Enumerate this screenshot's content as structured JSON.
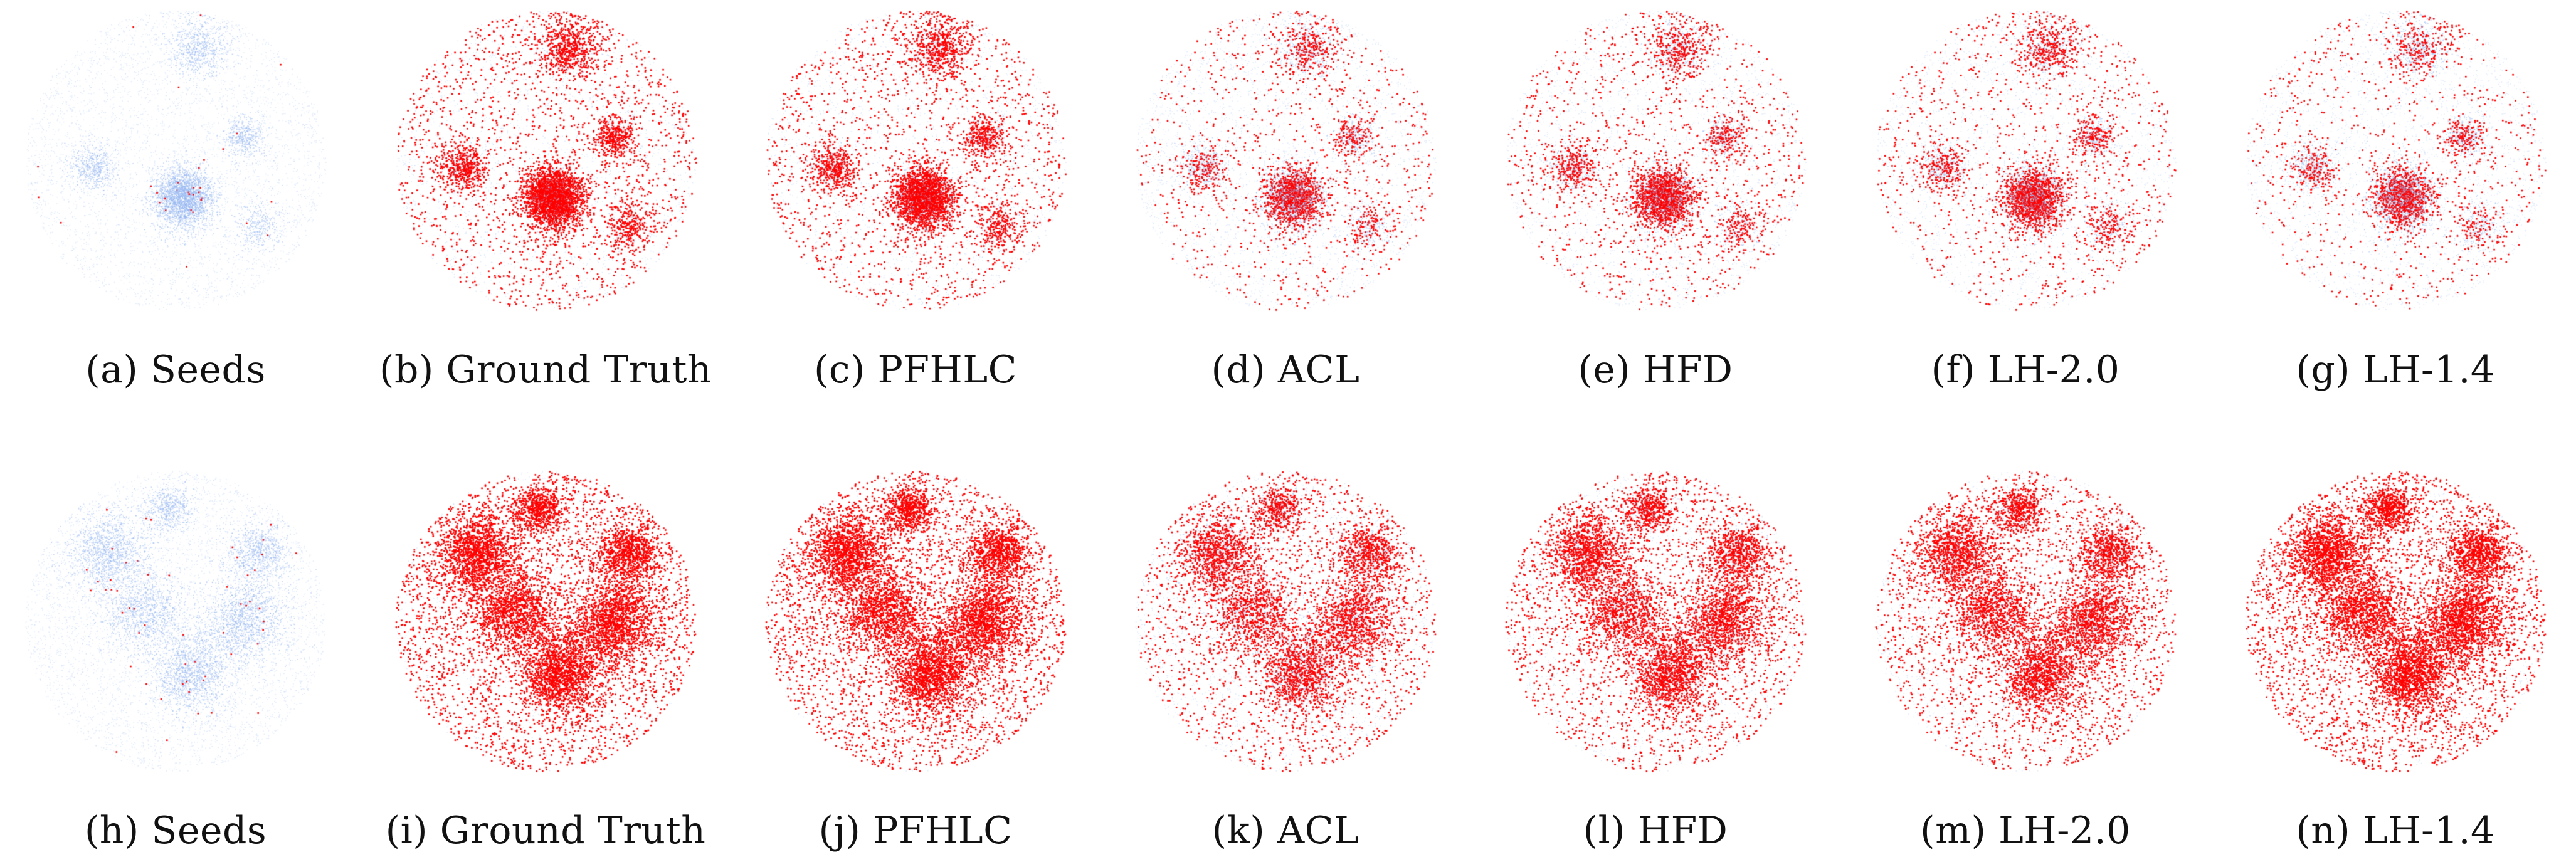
{
  "figure": {
    "colors": {
      "background_nodes": "#8fb3f0",
      "selected_nodes": "#ff0000"
    },
    "rows": [
      {
        "panels": [
          {
            "label": "(a)  Seeds",
            "fraction_selected": 0.003
          },
          {
            "label": "(b)  Ground Truth",
            "fraction_selected": 0.55
          },
          {
            "label": "(c)  PFHLC",
            "fraction_selected": 0.5
          },
          {
            "label": "(d)  ACL",
            "fraction_selected": 0.26
          },
          {
            "label": "(e)  HFD",
            "fraction_selected": 0.32
          },
          {
            "label": "(f)  LH-2.0",
            "fraction_selected": 0.3
          },
          {
            "label": "(g)  LH-1.4",
            "fraction_selected": 0.22
          }
        ]
      },
      {
        "panels": [
          {
            "label": "(h)  Seeds",
            "fraction_selected": 0.003
          },
          {
            "label": "(i)  Ground Truth",
            "fraction_selected": 0.8
          },
          {
            "label": "(j)  PFHLC",
            "fraction_selected": 0.8
          },
          {
            "label": "(k)  ACL",
            "fraction_selected": 0.45
          },
          {
            "label": "(l)  HFD",
            "fraction_selected": 0.55
          },
          {
            "label": "(m)  LH-2.0",
            "fraction_selected": 0.55
          },
          {
            "label": "(n)  LH-1.4",
            "fraction_selected": 0.78
          }
        ]
      }
    ]
  }
}
